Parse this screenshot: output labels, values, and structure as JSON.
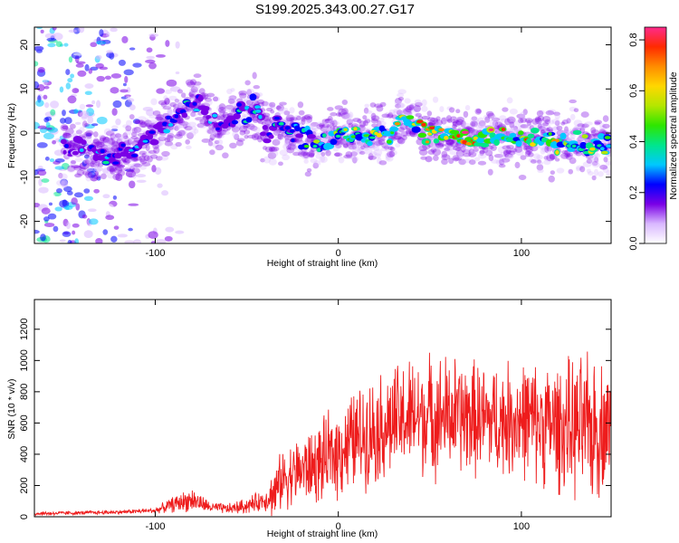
{
  "title": "S199.2025.343.00.27.G17",
  "chart_data": [
    {
      "type": "heatmap",
      "name": "spectrogram",
      "xlabel": "Height of straight line (km)",
      "ylabel": "Frequency (Hz)",
      "xlim": [
        -166,
        149
      ],
      "ylim": [
        -25,
        24
      ],
      "xticks": [
        -100,
        0,
        100
      ],
      "yticks": [
        -20,
        -10,
        0,
        10,
        20
      ],
      "colorbar": {
        "label": "Normalized spectral amplitude",
        "range": [
          0,
          0.85
        ],
        "ticks": [
          0.0,
          0.2,
          0.4,
          0.6,
          0.8
        ],
        "colors": [
          "#ffffff",
          "#d9b8ff",
          "#7a00e6",
          "#0000ff",
          "#00c8ff",
          "#00e68c",
          "#2ee600",
          "#b4e600",
          "#ffd700",
          "#ff8c00",
          "#ff2a00",
          "#ff2a8c"
        ]
      },
      "ridge": {
        "x": [
          -140,
          -130,
          -120,
          -110,
          -100,
          -90,
          -80,
          -75,
          -70,
          -60,
          -50,
          -45,
          -40,
          -30,
          -20,
          -10,
          0,
          10,
          20,
          30,
          35,
          40,
          50,
          60,
          70,
          80,
          90,
          100,
          110,
          120,
          130,
          140,
          149
        ],
        "freq": [
          -3,
          -5,
          -5,
          -3,
          0,
          3,
          6,
          7,
          2,
          3,
          5,
          6,
          0,
          1,
          -1,
          -2,
          0,
          -1,
          -1,
          1,
          4,
          2,
          0,
          0,
          -1,
          -1,
          -1,
          -1,
          -2,
          -2,
          -2,
          -3,
          -2
        ],
        "amplitude": [
          0.3,
          0.35,
          0.3,
          0.35,
          0.3,
          0.35,
          0.4,
          0.35,
          0.3,
          0.35,
          0.4,
          0.45,
          0.35,
          0.4,
          0.45,
          0.5,
          0.55,
          0.6,
          0.65,
          0.6,
          0.7,
          0.75,
          0.8,
          0.78,
          0.8,
          0.85,
          0.8,
          0.78,
          0.75,
          0.7,
          0.65,
          0.6,
          0.55
        ]
      }
    },
    {
      "type": "line",
      "name": "snr",
      "xlabel": "Height of straight line (km)",
      "ylabel": "SNR (10 * v/v)",
      "xlim": [
        -166,
        149
      ],
      "ylim": [
        0,
        1390
      ],
      "xticks": [
        -100,
        0,
        100
      ],
      "yticks": [
        0,
        200,
        400,
        600,
        800,
        1000,
        1200
      ],
      "color": "#ee1c1c",
      "envelope": {
        "x": [
          -166,
          -140,
          -120,
          -100,
          -90,
          -80,
          -70,
          -60,
          -50,
          -40,
          -35,
          -30,
          -20,
          -10,
          0,
          10,
          20,
          30,
          40,
          50,
          60,
          70,
          80,
          90,
          100,
          110,
          120,
          130,
          140,
          149
        ],
        "mean": [
          20,
          25,
          30,
          40,
          80,
          110,
          60,
          50,
          70,
          110,
          150,
          250,
          300,
          340,
          420,
          500,
          560,
          600,
          640,
          650,
          650,
          640,
          620,
          620,
          630,
          600,
          580,
          560,
          560,
          600
        ],
        "spread": [
          15,
          15,
          15,
          20,
          60,
          90,
          40,
          40,
          60,
          80,
          200,
          220,
          260,
          300,
          350,
          380,
          400,
          420,
          440,
          450,
          450,
          440,
          420,
          420,
          440,
          450,
          480,
          520,
          560,
          400
        ]
      }
    }
  ]
}
